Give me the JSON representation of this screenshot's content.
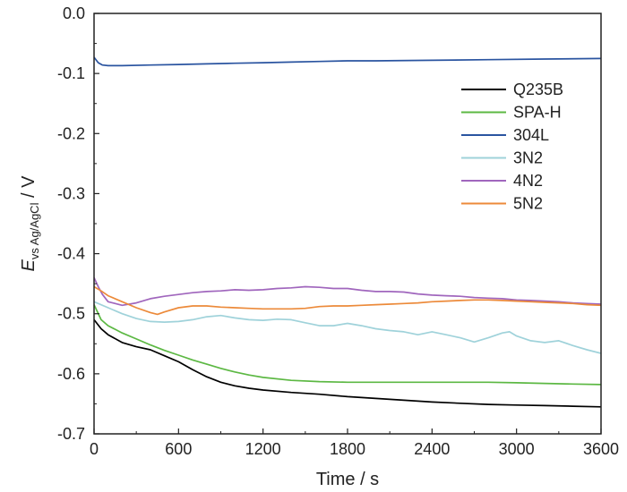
{
  "chart_data": {
    "type": "line",
    "xlabel": "Time / s",
    "ylabel": {
      "main": "E",
      "subscript": "vs Ag/AgCl",
      "unit": " / V"
    },
    "xlim": [
      0,
      3600
    ],
    "ylim": [
      -0.7,
      0.0
    ],
    "xticks": [
      0,
      600,
      1200,
      1800,
      2400,
      3000,
      3600
    ],
    "xtick_labels": [
      "0",
      "600",
      "1200",
      "1800",
      "2400",
      "3000",
      "3600"
    ],
    "yticks": [
      0.0,
      -0.1,
      -0.2,
      -0.3,
      -0.4,
      -0.5,
      -0.6,
      -0.7
    ],
    "ytick_labels": [
      "0.0",
      "-0.1",
      "-0.2",
      "-0.3",
      "-0.4",
      "-0.5",
      "-0.6",
      "-0.7"
    ],
    "grid": false,
    "legend_position": "right",
    "series": [
      {
        "name": "Q235B",
        "color": "#000000",
        "x": [
          0,
          50,
          100,
          200,
          300,
          400,
          500,
          600,
          700,
          800,
          900,
          1000,
          1100,
          1200,
          1400,
          1600,
          1800,
          2000,
          2200,
          2400,
          2600,
          2800,
          3000,
          3200,
          3400,
          3600
        ],
        "y": [
          -0.51,
          -0.525,
          -0.535,
          -0.548,
          -0.555,
          -0.56,
          -0.57,
          -0.58,
          -0.593,
          -0.605,
          -0.614,
          -0.62,
          -0.624,
          -0.627,
          -0.631,
          -0.634,
          -0.638,
          -0.641,
          -0.644,
          -0.647,
          -0.649,
          -0.651,
          -0.652,
          -0.653,
          -0.654,
          -0.655
        ]
      },
      {
        "name": "SPA-H",
        "color": "#5cb843",
        "x": [
          0,
          50,
          100,
          200,
          300,
          400,
          500,
          600,
          700,
          800,
          900,
          1000,
          1100,
          1200,
          1400,
          1600,
          1800,
          2000,
          2400,
          2800,
          3000,
          3200,
          3400,
          3600
        ],
        "y": [
          -0.485,
          -0.51,
          -0.52,
          -0.532,
          -0.542,
          -0.552,
          -0.561,
          -0.569,
          -0.577,
          -0.584,
          -0.591,
          -0.597,
          -0.602,
          -0.606,
          -0.611,
          -0.613,
          -0.614,
          -0.614,
          -0.614,
          -0.614,
          -0.615,
          -0.616,
          -0.617,
          -0.618
        ]
      },
      {
        "name": "304L",
        "color": "#2a54a0",
        "x": [
          0,
          30,
          60,
          100,
          200,
          400,
          600,
          800,
          1000,
          1200,
          1400,
          1600,
          1800,
          2000,
          2400,
          2800,
          3200,
          3600
        ],
        "y": [
          -0.073,
          -0.082,
          -0.086,
          -0.087,
          -0.087,
          -0.086,
          -0.085,
          -0.084,
          -0.083,
          -0.082,
          -0.081,
          -0.08,
          -0.079,
          -0.079,
          -0.078,
          -0.077,
          -0.076,
          -0.075
        ]
      },
      {
        "name": "3N2",
        "color": "#9fd2da",
        "x": [
          0,
          100,
          200,
          300,
          400,
          500,
          600,
          700,
          800,
          900,
          1000,
          1100,
          1200,
          1300,
          1400,
          1500,
          1600,
          1700,
          1800,
          1900,
          2000,
          2100,
          2200,
          2300,
          2400,
          2500,
          2600,
          2700,
          2800,
          2900,
          2950,
          3000,
          3100,
          3200,
          3300,
          3400,
          3500,
          3600
        ],
        "y": [
          -0.48,
          -0.49,
          -0.5,
          -0.508,
          -0.513,
          -0.514,
          -0.513,
          -0.51,
          -0.505,
          -0.503,
          -0.507,
          -0.51,
          -0.511,
          -0.509,
          -0.51,
          -0.515,
          -0.52,
          -0.52,
          -0.516,
          -0.52,
          -0.525,
          -0.528,
          -0.53,
          -0.535,
          -0.53,
          -0.535,
          -0.54,
          -0.547,
          -0.54,
          -0.532,
          -0.53,
          -0.537,
          -0.545,
          -0.548,
          -0.545,
          -0.553,
          -0.56,
          -0.566
        ]
      },
      {
        "name": "4N2",
        "color": "#a066bd",
        "x": [
          0,
          30,
          60,
          100,
          200,
          300,
          400,
          500,
          600,
          700,
          800,
          900,
          1000,
          1100,
          1200,
          1300,
          1400,
          1500,
          1600,
          1700,
          1800,
          1900,
          2000,
          2100,
          2200,
          2300,
          2400,
          2500,
          2600,
          2700,
          2800,
          2900,
          3000,
          3100,
          3200,
          3300,
          3400,
          3500,
          3600
        ],
        "y": [
          -0.44,
          -0.455,
          -0.468,
          -0.48,
          -0.486,
          -0.482,
          -0.475,
          -0.471,
          -0.468,
          -0.465,
          -0.463,
          -0.462,
          -0.46,
          -0.461,
          -0.46,
          -0.458,
          -0.457,
          -0.455,
          -0.456,
          -0.458,
          -0.458,
          -0.461,
          -0.463,
          -0.463,
          -0.464,
          -0.467,
          -0.469,
          -0.47,
          -0.471,
          -0.473,
          -0.474,
          -0.475,
          -0.477,
          -0.478,
          -0.479,
          -0.48,
          -0.482,
          -0.483,
          -0.484
        ]
      },
      {
        "name": "5N2",
        "color": "#ec8a3a",
        "x": [
          0,
          50,
          100,
          200,
          300,
          400,
          450,
          500,
          600,
          700,
          800,
          900,
          1000,
          1100,
          1200,
          1300,
          1400,
          1500,
          1600,
          1700,
          1800,
          1900,
          2000,
          2100,
          2200,
          2300,
          2400,
          2500,
          2600,
          2700,
          2800,
          2900,
          3000,
          3100,
          3200,
          3300,
          3400,
          3500,
          3600
        ],
        "y": [
          -0.455,
          -0.462,
          -0.47,
          -0.48,
          -0.49,
          -0.498,
          -0.501,
          -0.497,
          -0.49,
          -0.487,
          -0.487,
          -0.489,
          -0.49,
          -0.491,
          -0.492,
          -0.492,
          -0.492,
          -0.491,
          -0.488,
          -0.487,
          -0.487,
          -0.486,
          -0.485,
          -0.484,
          -0.483,
          -0.482,
          -0.48,
          -0.479,
          -0.478,
          -0.477,
          -0.477,
          -0.478,
          -0.479,
          -0.48,
          -0.481,
          -0.482,
          -0.483,
          -0.485,
          -0.486
        ]
      }
    ]
  }
}
